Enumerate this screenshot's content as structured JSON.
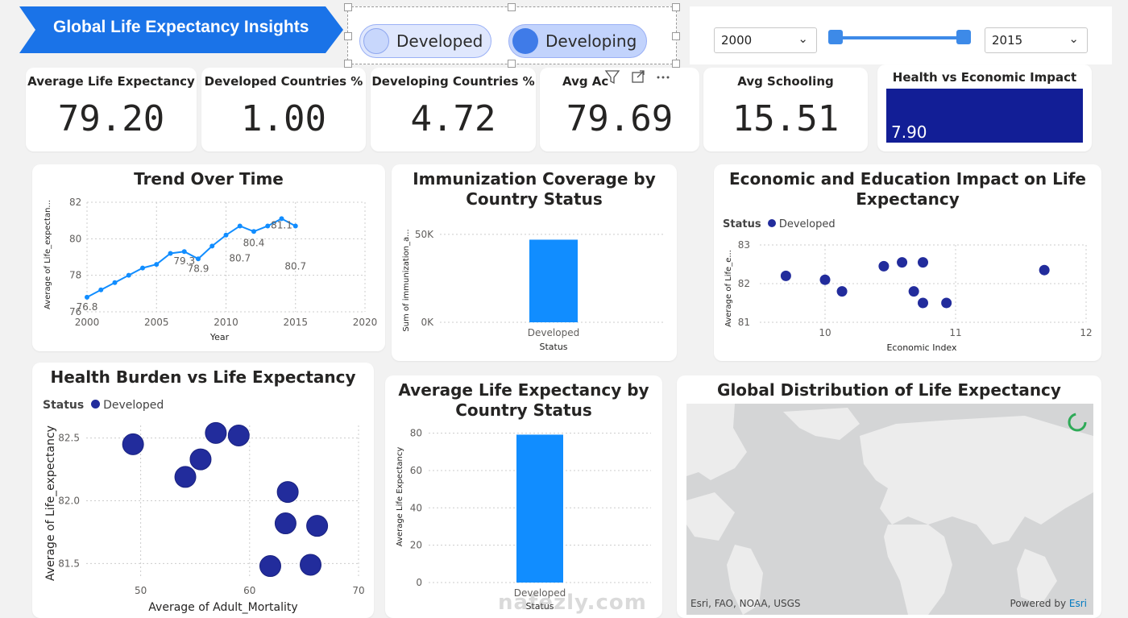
{
  "header": {
    "title": "Global Life Expectancy Insights",
    "accent": "#1a73e8"
  },
  "status_slicer": {
    "options": [
      {
        "label": "Developed",
        "selected": false
      },
      {
        "label": "Developing",
        "selected": true
      }
    ]
  },
  "year_range": {
    "start": "2000",
    "end": "2015"
  },
  "kpis": [
    {
      "label": "Average Life Expectancy",
      "value": "79.20"
    },
    {
      "label": "Developed Countries %",
      "value": "1.00"
    },
    {
      "label": "Developing Countries %",
      "value": "4.72"
    },
    {
      "label": "Avg Ac",
      "value": "79.69"
    },
    {
      "label": "Avg Schooling",
      "value": "15.51"
    }
  ],
  "health_econ": {
    "label": "Health vs Economic Impact",
    "value": "7.90",
    "color": "#121e96"
  },
  "visuals": {
    "trend": {
      "title": "Trend Over Time",
      "xlabel": "Year",
      "ylabel": "Average of Life_expectan..."
    },
    "immunization": {
      "title_line1": "Immunization Coverage by",
      "title_line2": "Country Status",
      "xlabel": "Status",
      "ylabel": "Sum of immunization_a..."
    },
    "econ_edu": {
      "title_line1": "Economic and Education Impact on Life",
      "title_line2": "Expectancy",
      "xlabel": "Economic Index",
      "ylabel": "Average of Life_e...",
      "legend_title": "Status",
      "legend_item": "Developed"
    },
    "health_burden": {
      "title": "Health Burden vs Life Expectancy",
      "xlabel": "Average of Adult_Mortality",
      "ylabel": "Average of Life_expectancy",
      "legend_title": "Status",
      "legend_item": "Developed"
    },
    "avg_life": {
      "title_line1": "Average Life Expectancy by",
      "title_line2": "Country Status",
      "xlabel": "Status",
      "ylabel": "Average Life Expectancy"
    },
    "map": {
      "title": "Global Distribution of Life Expectancy",
      "attribution": "Esri, FAO, NOAA, USGS",
      "powered_prefix": "Powered by ",
      "powered_brand": "Esri"
    }
  },
  "watermark": {
    "text": "nafezly.com"
  },
  "chart_data": [
    {
      "type": "line",
      "title": "Trend Over Time",
      "xlabel": "Year",
      "ylabel": "Average of Life_expectan...",
      "xlim": [
        2000,
        2020
      ],
      "ylim": [
        76,
        82
      ],
      "xticks": [
        2000,
        2005,
        2010,
        2015,
        2020
      ],
      "yticks": [
        76,
        78,
        80,
        82
      ],
      "x": [
        2000,
        2001,
        2002,
        2003,
        2004,
        2005,
        2006,
        2007,
        2008,
        2009,
        2010,
        2011,
        2012,
        2013,
        2014,
        2015
      ],
      "y": [
        76.8,
        77.2,
        77.6,
        78.0,
        78.4,
        78.6,
        79.2,
        79.3,
        78.9,
        79.6,
        80.2,
        80.7,
        80.4,
        80.7,
        81.1,
        80.7
      ],
      "data_labels": [
        {
          "x": 2000,
          "text": "76.8"
        },
        {
          "x": 2007,
          "text": "79.3"
        },
        {
          "x": 2008,
          "text": "78.9"
        },
        {
          "x": 2011,
          "text": "80.7"
        },
        {
          "x": 2012,
          "text": "80.4"
        },
        {
          "x": 2014,
          "text": "81.1"
        },
        {
          "x": 2015,
          "text": "80.7"
        }
      ],
      "color": "#118dff",
      "grid": true
    },
    {
      "type": "bar",
      "title": "Immunization Coverage by Country Status",
      "categories": [
        "Developed"
      ],
      "values": [
        47000
      ],
      "yticks": [
        "0K",
        "50K"
      ],
      "ylim": [
        0,
        55000
      ],
      "xlabel": "Status",
      "ylabel": "Sum of immunization_a...",
      "color": "#118dff"
    },
    {
      "type": "scatter",
      "title": "Economic and Education Impact on Life Expectancy",
      "xlabel": "Economic Index",
      "ylabel": "Average of Life_e...",
      "xlim": [
        9.5,
        12
      ],
      "ylim": [
        81,
        83
      ],
      "xticks": [
        10,
        11,
        12
      ],
      "yticks": [
        81,
        82,
        83
      ],
      "series": [
        {
          "name": "Developed",
          "points": [
            [
              9.7,
              82.2
            ],
            [
              10.0,
              82.1
            ],
            [
              10.13,
              81.8
            ],
            [
              10.45,
              82.45
            ],
            [
              10.59,
              82.55
            ],
            [
              10.68,
              81.8
            ],
            [
              10.75,
              81.5
            ],
            [
              10.75,
              82.55
            ],
            [
              10.93,
              81.5
            ],
            [
              11.68,
              82.35
            ]
          ]
        }
      ],
      "color": "#222c9c"
    },
    {
      "type": "scatter",
      "title": "Health Burden vs Life Expectancy",
      "xlabel": "Average of Adult_Mortality",
      "ylabel": "Average of Life_expectancy",
      "xlim": [
        45,
        70
      ],
      "ylim": [
        81.4,
        82.6
      ],
      "xticks": [
        50,
        60,
        70
      ],
      "yticks": [
        81.5,
        82.0,
        82.5
      ],
      "series": [
        {
          "name": "Developed",
          "points": [
            [
              49.3,
              82.45
            ],
            [
              54.1,
              82.19
            ],
            [
              55.5,
              82.33
            ],
            [
              56.9,
              82.54
            ],
            [
              59.0,
              82.52
            ],
            [
              61.9,
              81.48
            ],
            [
              63.3,
              81.82
            ],
            [
              63.5,
              82.07
            ],
            [
              65.6,
              81.49
            ],
            [
              66.2,
              81.8
            ]
          ]
        }
      ],
      "color": "#222c9c"
    },
    {
      "type": "bar",
      "title": "Average Life Expectancy by Country Status",
      "categories": [
        "Developed"
      ],
      "values": [
        79.2
      ],
      "ylim": [
        0,
        85
      ],
      "yticks": [
        0,
        20,
        40,
        60,
        80
      ],
      "xlabel": "Status",
      "ylabel": "Average Life Expectancy",
      "color": "#118dff"
    }
  ]
}
